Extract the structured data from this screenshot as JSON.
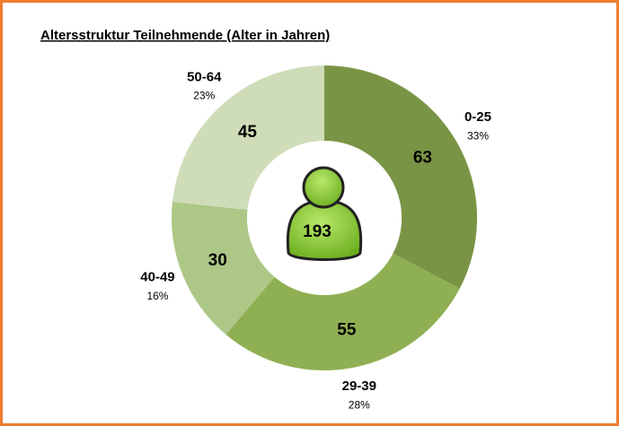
{
  "chart_data": {
    "type": "donut",
    "title": "Altersstruktur Teilnehmende  (Alter in Jahren)",
    "categories": [
      "0-25",
      "29-39",
      "40-49",
      "50-64"
    ],
    "values": [
      63,
      55,
      30,
      45
    ],
    "percent_labels": [
      "33%",
      "28%",
      "16%",
      "23%"
    ],
    "colors": [
      "#7a9445",
      "#8fb052",
      "#adc786",
      "#cfdcb8"
    ],
    "total": 193
  }
}
